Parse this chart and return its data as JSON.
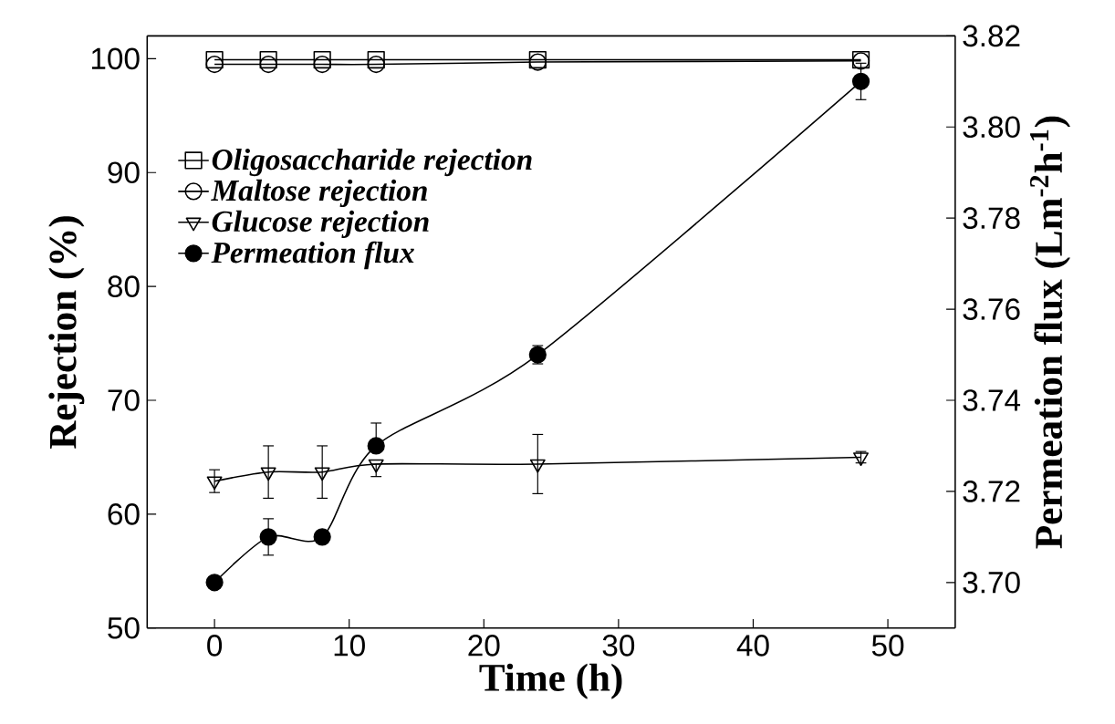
{
  "chart_data": {
    "type": "line",
    "xlabel": "Time (h)",
    "ylabel": "Rejection (%)",
    "y2label": "Permeation flux (Lm$^{-2}$h$^{-1}$)",
    "x": [
      0,
      4,
      8,
      12,
      24,
      48
    ],
    "xlim": [
      -5,
      55
    ],
    "xticks": [
      0,
      10,
      20,
      30,
      40,
      50
    ],
    "ylim": [
      50,
      102
    ],
    "yticks": [
      50,
      60,
      70,
      80,
      90,
      100
    ],
    "y2lim": [
      3.69,
      3.82
    ],
    "y2ticks": [
      {
        "value": 3.7,
        "label": "3.70"
      },
      {
        "value": 3.72,
        "label": "3.72"
      },
      {
        "value": 3.74,
        "label": "3.74"
      },
      {
        "value": 3.76,
        "label": "3.76"
      },
      {
        "value": 3.78,
        "label": "3.78"
      },
      {
        "value": 3.8,
        "label": "3.80"
      },
      {
        "value": 3.82,
        "label": "3.82"
      }
    ],
    "legend": "top left",
    "grid": false,
    "series": [
      {
        "name": "Oligosaccharide rejection",
        "color": "#000000",
        "marker": "square",
        "values": [
          99.9,
          99.9,
          99.9,
          99.9,
          99.9,
          99.9
        ]
      },
      {
        "name": "Maltose rejection",
        "color": "#000000",
        "marker": "circle",
        "values": [
          99.5,
          99.5,
          99.5,
          99.5,
          99.7,
          99.8
        ]
      },
      {
        "name": "Glucose rejection",
        "color": "#000000",
        "marker": "triangle",
        "values": [
          62.9,
          63.7,
          63.7,
          64.4,
          64.4,
          65.0
        ],
        "errors": [
          1.0,
          2.3,
          2.3,
          [
            63.3,
            64.4
          ],
          2.6,
          0.5
        ]
      },
      {
        "name": "Permeation flux",
        "color": "#000000",
        "marker": "circle",
        "axis": "y2",
        "values": [
          3.7,
          3.71,
          3.71,
          3.73,
          3.75,
          3.81
        ],
        "errors": [
          null,
          0.004,
          null,
          [
            3.73,
            3.735
          ],
          0.002,
          0.004
        ]
      }
    ]
  }
}
